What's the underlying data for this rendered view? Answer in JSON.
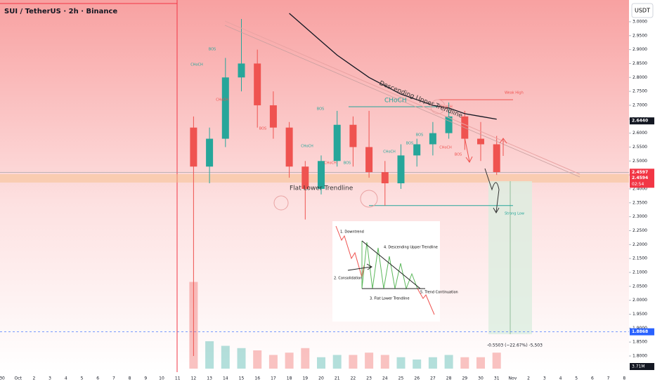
{
  "chart_data": {
    "type": "candlestick",
    "title": "SUI / TetherUS · 2h · Binance",
    "currency": "USDT",
    "categories": [
      "30",
      "Oct",
      "2",
      "3",
      "4",
      "5",
      "6",
      "7",
      "8",
      "9",
      "10",
      "11",
      "12",
      "13",
      "14",
      "15",
      "16",
      "17",
      "18",
      "19",
      "20",
      "21",
      "22",
      "23",
      "24",
      "25",
      "26",
      "27",
      "28",
      "29",
      "30",
      "31",
      "Nov",
      "2",
      "3",
      "4",
      "5",
      "6",
      "7",
      "8"
    ],
    "open": [
      null,
      null,
      null,
      null,
      null,
      null,
      null,
      null,
      null,
      null,
      null,
      null,
      2.62,
      2.48,
      2.58,
      2.8,
      2.85,
      2.7,
      2.62,
      2.48,
      2.4,
      2.5,
      2.63,
      2.55,
      2.46,
      2.42,
      2.52,
      2.56,
      2.6,
      2.66,
      2.58,
      2.56,
      null,
      null,
      null,
      null,
      null,
      null,
      null,
      null
    ],
    "high": [
      null,
      null,
      null,
      null,
      null,
      null,
      null,
      null,
      null,
      null,
      null,
      null,
      2.66,
      2.62,
      2.87,
      3.01,
      2.9,
      2.75,
      2.64,
      2.5,
      2.52,
      2.68,
      2.66,
      2.68,
      2.5,
      2.56,
      2.58,
      2.64,
      2.71,
      2.68,
      2.64,
      2.59,
      null,
      null,
      null,
      null,
      null,
      null,
      null,
      null
    ],
    "low": [
      null,
      null,
      null,
      null,
      null,
      null,
      null,
      null,
      null,
      null,
      null,
      null,
      1.8,
      2.42,
      2.55,
      2.75,
      2.62,
      2.58,
      2.44,
      2.29,
      2.38,
      2.48,
      2.48,
      2.44,
      2.34,
      2.4,
      2.48,
      2.52,
      2.58,
      2.54,
      2.5,
      2.45,
      null,
      null,
      null,
      null,
      null,
      null,
      null,
      null
    ],
    "close": [
      null,
      null,
      null,
      null,
      null,
      null,
      null,
      null,
      null,
      null,
      null,
      null,
      2.48,
      2.58,
      2.8,
      2.85,
      2.7,
      2.62,
      2.48,
      2.4,
      2.5,
      2.63,
      2.55,
      2.46,
      2.42,
      2.52,
      2.56,
      2.6,
      2.66,
      2.58,
      2.56,
      2.46,
      null,
      null,
      null,
      null,
      null,
      null,
      null,
      null
    ],
    "moving_average": [
      null,
      null,
      null,
      null,
      null,
      null,
      null,
      null,
      null,
      null,
      null,
      null,
      null,
      null,
      null,
      null,
      null,
      null,
      3.03,
      2.98,
      2.93,
      2.88,
      2.84,
      2.8,
      2.77,
      2.74,
      2.72,
      2.7,
      2.69,
      2.67,
      2.66,
      2.65,
      null,
      null,
      null,
      null,
      null,
      null,
      null,
      null
    ],
    "volume": [
      null,
      null,
      null,
      null,
      null,
      null,
      null,
      null,
      null,
      null,
      null,
      null,
      38,
      12,
      10,
      9,
      8,
      6,
      7,
      9,
      5,
      6,
      6,
      7,
      6,
      5,
      4,
      5,
      6,
      5,
      5,
      7,
      null,
      null,
      null,
      null,
      null,
      null,
      null,
      null
    ],
    "volume_lim": [
      0,
      40
    ],
    "volume_label": "3.71M",
    "up_color": "#26a69a",
    "down_color": "#ef5350",
    "ylim": [
      1.742,
      3.078
    ],
    "yticks": [
      {
        "value": 1.8,
        "label": "1.8000"
      },
      {
        "value": 1.85,
        "label": "1.8500"
      },
      {
        "value": 1.9,
        "label": "1.9000"
      },
      {
        "value": 1.95,
        "label": "1.9500"
      },
      {
        "value": 2.0,
        "label": "2.0000"
      },
      {
        "value": 2.05,
        "label": "2.0500"
      },
      {
        "value": 2.1,
        "label": "2.1000"
      },
      {
        "value": 2.15,
        "label": "2.1500"
      },
      {
        "value": 2.2,
        "label": "2.2000"
      },
      {
        "value": 2.25,
        "label": "2.2500"
      },
      {
        "value": 2.3,
        "label": "2.3000"
      },
      {
        "value": 2.35,
        "label": "2.3500"
      },
      {
        "value": 2.4,
        "label": "2.4000"
      },
      {
        "value": 2.45,
        "label": "2.4500"
      },
      {
        "value": 2.5,
        "label": "2.5000"
      },
      {
        "value": 2.55,
        "label": "2.5500"
      },
      {
        "value": 2.6,
        "label": "2.6000"
      },
      {
        "value": 2.65,
        "label": "2.6500"
      },
      {
        "value": 2.7,
        "label": "2.7000"
      },
      {
        "value": 2.75,
        "label": "2.7500"
      },
      {
        "value": 2.8,
        "label": "2.8000"
      },
      {
        "value": 2.85,
        "label": "2.8500"
      },
      {
        "value": 2.9,
        "label": "2.9000"
      },
      {
        "value": 2.95,
        "label": "2.9500"
      },
      {
        "value": 3.0,
        "label": "3.0000"
      }
    ],
    "price_labels": [
      {
        "value": 2.644,
        "label": "2.6440",
        "color": "#131722"
      },
      {
        "value": 2.4597,
        "label": "2.4597",
        "color": "#f23645"
      },
      {
        "value": 2.4594,
        "label": "2.4594",
        "color": "#f23645"
      },
      {
        "value": 1.8868,
        "label": "1.8868",
        "color": "#2962ff"
      }
    ],
    "countdown": "02:54",
    "levels": {
      "weak_high": 2.72,
      "choch": 2.695,
      "strong_low": 2.34,
      "current": 2.4594,
      "target": 1.8868
    },
    "annotations": {
      "upper": "Descending Upper Trendline",
      "lower": "Flat Lower Trendline",
      "choch": "CHoCH",
      "weak_high": "Weak High",
      "strong_low": "Strong Low",
      "measure": "-0.5503 (−22.67%) -5,503"
    },
    "structure_labels": [
      "BOS",
      "CHoCH",
      "CHoCH",
      "BOS",
      "CHoCH",
      "CHoCH",
      "BOS",
      "BOS",
      "CHoCH",
      "BOS",
      "BOS",
      "CHoCH",
      "CHoCH",
      "BOS"
    ],
    "inset": {
      "step1": "1. Downtrend",
      "step2": "2. Consolidation",
      "step3": "3. Flat Lower Trendline",
      "step4": "4. Descending Upper Trendline",
      "step5": "5. Trend Continuation"
    }
  }
}
